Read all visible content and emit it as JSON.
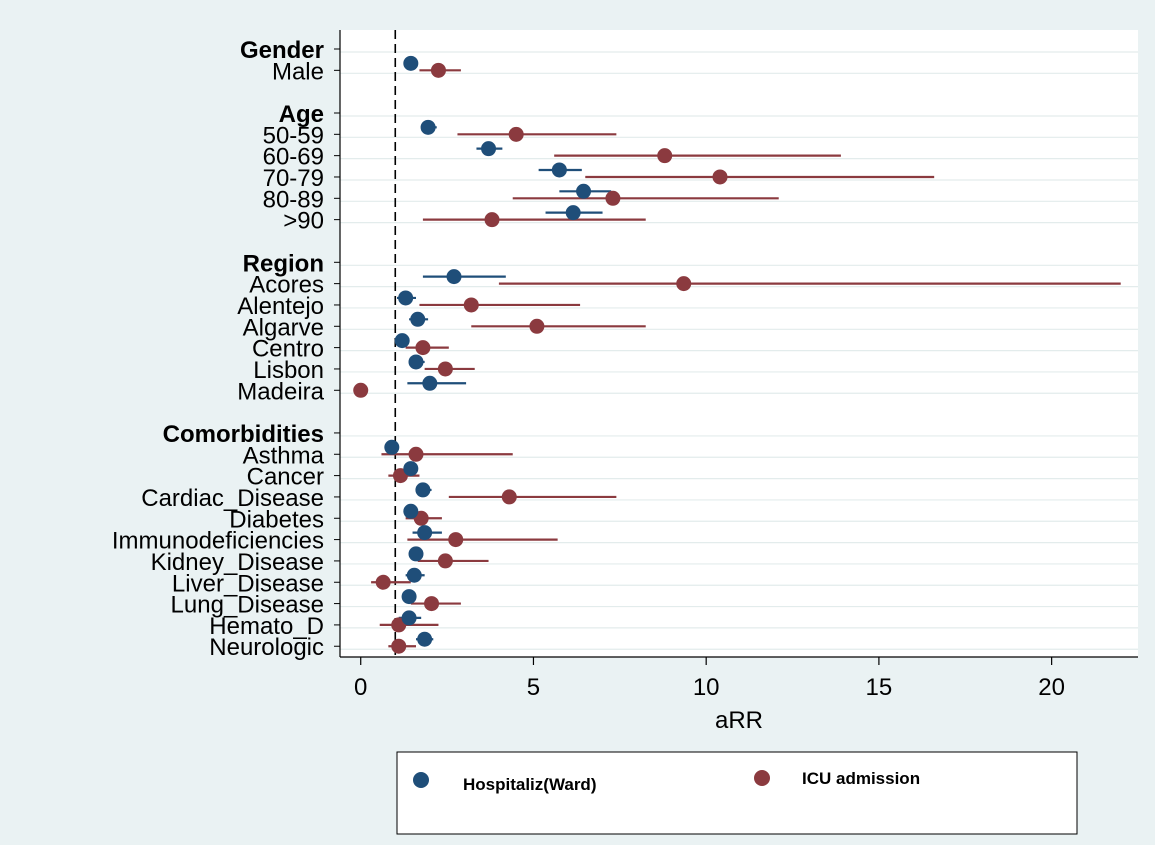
{
  "chart_data": {
    "type": "scatter",
    "subtype": "forest-plot",
    "title": "",
    "xlabel": "aRR",
    "ylabel": "",
    "xlim": [
      -0.6,
      22.5
    ],
    "xticks": [
      0,
      5,
      10,
      15,
      20
    ],
    "reference_line": 1,
    "grid": "horizontal",
    "legend_position": "bottom",
    "colors": {
      "hospitalization": "#1f4e79",
      "icu": "#8b3a3f"
    },
    "series": [
      {
        "key": "hosp",
        "name": "Hospitaliz(Ward)",
        "color": "#1f4e79"
      },
      {
        "key": "icu",
        "name": "ICU admission",
        "color": "#8b3a3f"
      }
    ],
    "rows": [
      {
        "label": "Gender",
        "header": true
      },
      {
        "label": "Male",
        "hosp": [
          1.45,
          1.3,
          1.6
        ],
        "icu": [
          2.25,
          1.7,
          2.9
        ]
      },
      {
        "label": "",
        "spacer": true
      },
      {
        "label": "Age",
        "header": true
      },
      {
        "label": "50-59",
        "hosp": [
          1.95,
          1.75,
          2.2
        ],
        "icu": [
          4.5,
          2.8,
          7.4
        ]
      },
      {
        "label": "60-69",
        "hosp": [
          3.7,
          3.35,
          4.1
        ],
        "icu": [
          8.8,
          5.6,
          13.9
        ]
      },
      {
        "label": "70-79",
        "hosp": [
          5.75,
          5.15,
          6.4
        ],
        "icu": [
          10.4,
          6.5,
          16.6
        ]
      },
      {
        "label": "80-89",
        "hosp": [
          6.45,
          5.75,
          7.25
        ],
        "icu": [
          7.3,
          4.4,
          12.1
        ]
      },
      {
        "label": ">90",
        "hosp": [
          6.15,
          5.35,
          7.0
        ],
        "icu": [
          3.8,
          1.8,
          8.25
        ]
      },
      {
        "label": "",
        "spacer": true
      },
      {
        "label": "Region",
        "header": true
      },
      {
        "label": "Acores",
        "hosp": [
          2.7,
          1.8,
          4.2
        ],
        "icu": [
          9.35,
          4.0,
          22.0
        ]
      },
      {
        "label": "Alentejo",
        "hosp": [
          1.3,
          1.05,
          1.6
        ],
        "icu": [
          3.2,
          1.7,
          6.35
        ]
      },
      {
        "label": "Algarve",
        "hosp": [
          1.65,
          1.4,
          1.95
        ],
        "icu": [
          5.1,
          3.2,
          8.25
        ]
      },
      {
        "label": "Centro",
        "hosp": [
          1.2,
          1.05,
          1.4
        ],
        "icu": [
          1.8,
          1.3,
          2.55
        ]
      },
      {
        "label": "Lisbon",
        "hosp": [
          1.6,
          1.4,
          1.85
        ],
        "icu": [
          2.45,
          1.85,
          3.3
        ]
      },
      {
        "label": "Madeira",
        "hosp": [
          2.0,
          1.35,
          3.05
        ],
        "icu": [
          0.0,
          0.0,
          0.0
        ]
      },
      {
        "label": "",
        "spacer": true
      },
      {
        "label": "Comorbidities",
        "header": true
      },
      {
        "label": "Asthma",
        "hosp": [
          0.9,
          0.75,
          1.1
        ],
        "icu": [
          1.6,
          0.6,
          4.4
        ]
      },
      {
        "label": "Cancer",
        "hosp": [
          1.45,
          1.3,
          1.6
        ],
        "icu": [
          1.15,
          0.8,
          1.7
        ]
      },
      {
        "label": "Cardiac_Disease",
        "hosp": [
          1.8,
          1.6,
          2.05
        ],
        "icu": [
          4.3,
          2.55,
          7.4
        ]
      },
      {
        "label": "Diabetes",
        "hosp": [
          1.45,
          1.3,
          1.6
        ],
        "icu": [
          1.75,
          1.3,
          2.35
        ]
      },
      {
        "label": "Immunodeficiencies",
        "hosp": [
          1.85,
          1.5,
          2.35
        ],
        "icu": [
          2.75,
          1.35,
          5.7
        ]
      },
      {
        "label": "Kidney_Disease",
        "hosp": [
          1.6,
          1.4,
          1.8
        ],
        "icu": [
          2.45,
          1.65,
          3.7
        ]
      },
      {
        "label": "Liver_Disease",
        "hosp": [
          1.55,
          1.3,
          1.85
        ],
        "icu": [
          0.65,
          0.3,
          1.45
        ]
      },
      {
        "label": "Lung_Disease",
        "hosp": [
          1.4,
          1.25,
          1.6
        ],
        "icu": [
          2.05,
          1.45,
          2.9
        ]
      },
      {
        "label": "Hemato_D",
        "hosp": [
          1.4,
          1.1,
          1.75
        ],
        "icu": [
          1.1,
          0.55,
          2.25
        ]
      },
      {
        "label": "Neurologic",
        "hosp": [
          1.85,
          1.6,
          2.1
        ],
        "icu": [
          1.1,
          0.8,
          1.6
        ]
      }
    ]
  }
}
